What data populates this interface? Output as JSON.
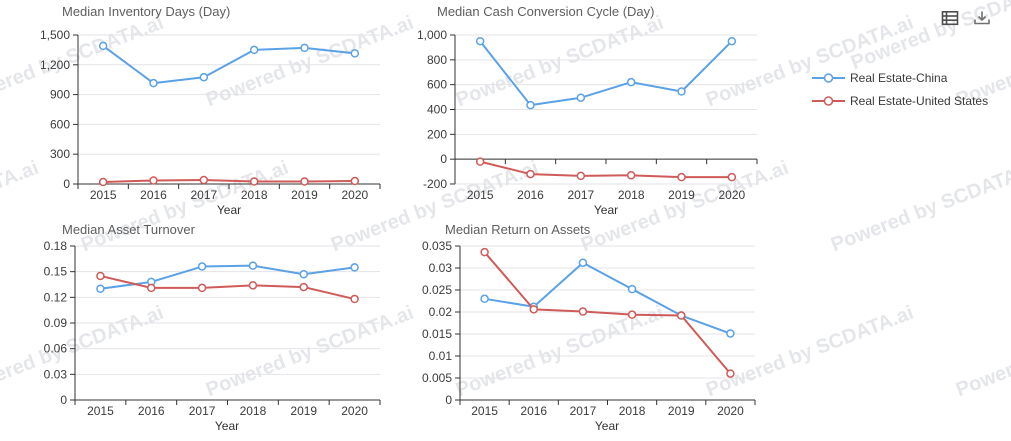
{
  "watermark": {
    "text": "Powered by SCDATA.ai"
  },
  "colors": {
    "china": "#5ba1e6",
    "us": "#cf5b58",
    "axis": "#333333",
    "grid": "#e3e3e8",
    "tick_label": "#3c3c3c",
    "title": "#5e5e5e"
  },
  "toolbar": {
    "icons": [
      {
        "name": "data-view-icon"
      },
      {
        "name": "download-icon"
      }
    ]
  },
  "legend": {
    "items": [
      {
        "label": "Real Estate-China",
        "color": "#5ba1e6"
      },
      {
        "label": "Real Estate-United States",
        "color": "#cf5b58"
      }
    ]
  },
  "chart_data": [
    {
      "type": "line",
      "title": "Median Inventory Days (Day)",
      "xlabel": "Year",
      "categories": [
        "2015",
        "2016",
        "2017",
        "2018",
        "2019",
        "2020"
      ],
      "ylim": [
        0,
        1500
      ],
      "yticks": [
        0,
        300,
        600,
        900,
        1200,
        1500
      ],
      "ytick_labels": [
        "0",
        "300",
        "600",
        "900",
        "1,200",
        "1,500"
      ],
      "grid": true,
      "series": [
        {
          "name": "Real Estate-China",
          "color": "#5ba1e6",
          "values": [
            1390,
            1015,
            1075,
            1350,
            1370,
            1315
          ]
        },
        {
          "name": "Real Estate-United States",
          "color": "#cf5b58",
          "values": [
            20,
            35,
            40,
            25,
            25,
            30
          ]
        }
      ]
    },
    {
      "type": "line",
      "title": "Median Cash Conversion Cycle (Day)",
      "xlabel": "Year",
      "categories": [
        "2015",
        "2016",
        "2017",
        "2018",
        "2019",
        "2020"
      ],
      "ylim": [
        -200,
        1000
      ],
      "yticks": [
        -200,
        0,
        200,
        400,
        600,
        800,
        1000
      ],
      "ytick_labels": [
        "-200",
        "0",
        "200",
        "400",
        "600",
        "800",
        "1,000"
      ],
      "grid": true,
      "series": [
        {
          "name": "Real Estate-China",
          "color": "#5ba1e6",
          "values": [
            950,
            435,
            495,
            620,
            545,
            950
          ]
        },
        {
          "name": "Real Estate-United States",
          "color": "#cf5b58",
          "values": [
            -20,
            -120,
            -135,
            -130,
            -145,
            -145
          ]
        }
      ]
    },
    {
      "type": "line",
      "title": "Median Asset Turnover",
      "xlabel": "Year",
      "categories": [
        "2015",
        "2016",
        "2017",
        "2018",
        "2019",
        "2020"
      ],
      "ylim": [
        0,
        0.18
      ],
      "yticks": [
        0,
        0.03,
        0.06,
        0.09,
        0.12,
        0.15,
        0.18
      ],
      "ytick_labels": [
        "0",
        "0.03",
        "0.06",
        "0.09",
        "0.12",
        "0.15",
        "0.18"
      ],
      "grid": true,
      "series": [
        {
          "name": "Real Estate-China",
          "color": "#5ba1e6",
          "values": [
            0.13,
            0.138,
            0.156,
            0.157,
            0.147,
            0.155
          ]
        },
        {
          "name": "Real Estate-United States",
          "color": "#cf5b58",
          "values": [
            0.145,
            0.131,
            0.131,
            0.134,
            0.132,
            0.118
          ]
        }
      ]
    },
    {
      "type": "line",
      "title": "Median Return on Assets",
      "xlabel": "Year",
      "categories": [
        "2015",
        "2016",
        "2017",
        "2018",
        "2019",
        "2020"
      ],
      "ylim": [
        0,
        0.035
      ],
      "yticks": [
        0,
        0.005,
        0.01,
        0.015,
        0.02,
        0.025,
        0.03,
        0.035
      ],
      "ytick_labels": [
        "0",
        "0.005",
        "0.01",
        "0.015",
        "0.02",
        "0.025",
        "0.03",
        "0.035"
      ],
      "grid": true,
      "series": [
        {
          "name": "Real Estate-China",
          "color": "#5ba1e6",
          "values": [
            0.023,
            0.0212,
            0.0312,
            0.0252,
            0.0192,
            0.0151
          ]
        },
        {
          "name": "Real Estate-United States",
          "color": "#cf5b58",
          "values": [
            0.0336,
            0.0206,
            0.0201,
            0.0194,
            0.0192,
            0.006
          ]
        }
      ]
    }
  ]
}
